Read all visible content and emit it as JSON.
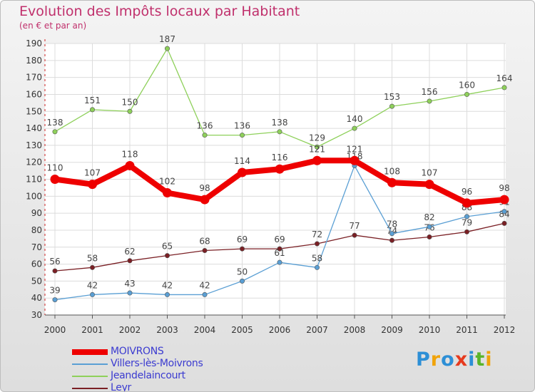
{
  "title": "Evolution des Impôts locaux par Habitant",
  "subtitle": "(en € et par an)",
  "logo": {
    "letters": [
      {
        "ch": "P",
        "color": "#2d8fd6"
      },
      {
        "ch": "r",
        "color": "#f0a30a"
      },
      {
        "ch": "o",
        "color": "#2d8fd6"
      },
      {
        "ch": "x",
        "color": "#e63a1e"
      },
      {
        "ch": "i",
        "color": "#2d8fd6"
      },
      {
        "ch": "t",
        "color": "#5ab42a"
      },
      {
        "ch": "i",
        "color": "#f0a30a"
      }
    ]
  },
  "chart_data": {
    "type": "line",
    "title": "Evolution des Impôts locaux par Habitant",
    "subtitle": "(en € et par an)",
    "x": [
      "2000",
      "2001",
      "2002",
      "2003",
      "2004",
      "2005",
      "2006",
      "2007",
      "2008",
      "2009",
      "2010",
      "2011",
      "2012"
    ],
    "ylim": [
      30,
      190
    ],
    "yticks": [
      30,
      40,
      50,
      60,
      70,
      80,
      90,
      100,
      110,
      120,
      130,
      140,
      150,
      160,
      170,
      180,
      190
    ],
    "grid": true,
    "legend_position": "bottom-left",
    "series": [
      {
        "name": "MOIVRONS",
        "color": "#ee0000",
        "values": [
          110,
          107,
          118,
          102,
          98,
          114,
          116,
          121,
          121,
          108,
          107,
          96,
          98
        ]
      },
      {
        "name": "Villers-lès-Moivrons",
        "color": "#5a9fd4",
        "values": [
          39,
          42,
          43,
          42,
          42,
          50,
          61,
          58,
          118,
          78,
          82,
          88,
          91
        ]
      },
      {
        "name": "Jeandelaincourt",
        "color": "#8ed05a",
        "values": [
          138,
          151,
          150,
          187,
          136,
          136,
          138,
          129,
          140,
          153,
          156,
          160,
          164
        ]
      },
      {
        "name": "Leyr",
        "color": "#7a1f24",
        "values": [
          56,
          58,
          62,
          65,
          68,
          69,
          69,
          72,
          77,
          74,
          76,
          79,
          84
        ]
      }
    ]
  }
}
